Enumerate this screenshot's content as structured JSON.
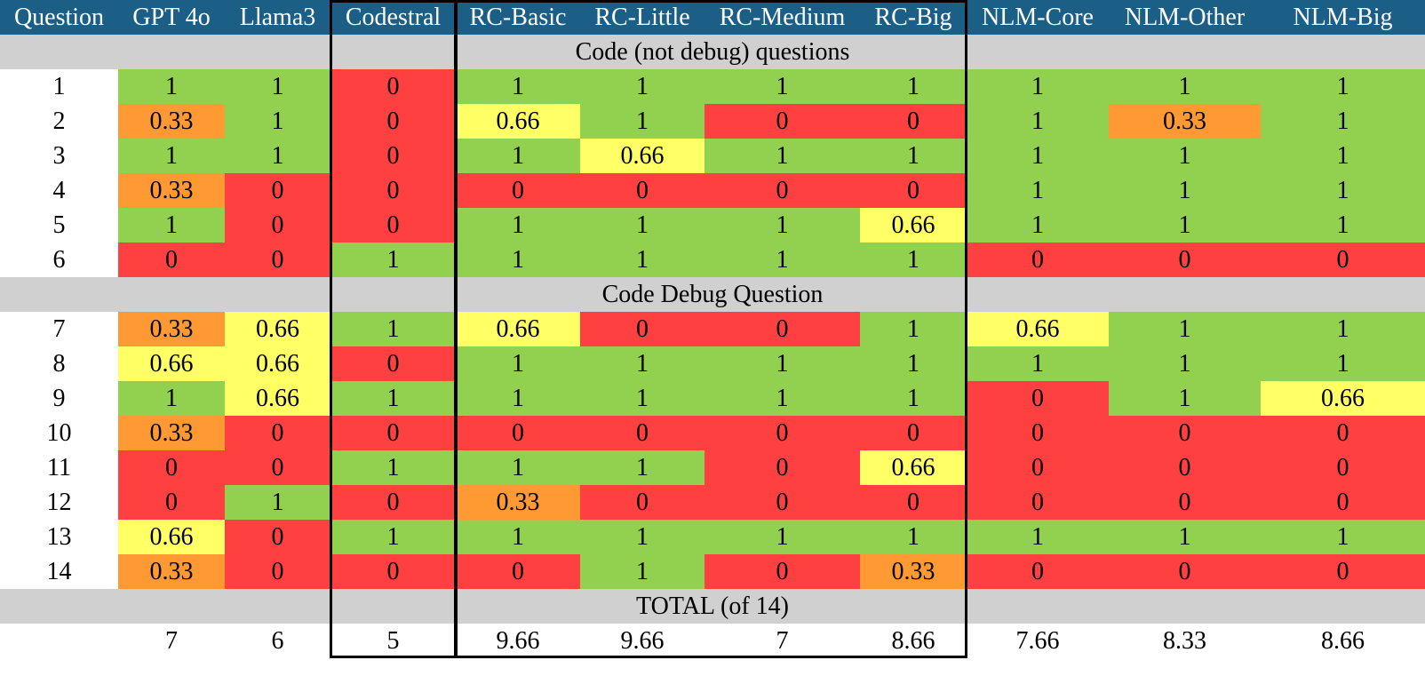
{
  "chart_data": {
    "type": "table",
    "columns": [
      "Question",
      "GPT 4o",
      "Llama3",
      "Codestral",
      "RC-Basic",
      "RC-Little",
      "RC-Medium",
      "RC-Big",
      "NLM-Core",
      "NLM-Other",
      "NLM-Big"
    ],
    "sections": [
      {
        "title": "Code (not debug) questions",
        "rows": [
          {
            "q": "1",
            "v": [
              "1",
              "1",
              "0",
              "1",
              "1",
              "1",
              "1",
              "1",
              "1",
              "1"
            ]
          },
          {
            "q": "2",
            "v": [
              "0.33",
              "1",
              "0",
              "0.66",
              "1",
              "0",
              "0",
              "1",
              "0.33",
              "1"
            ]
          },
          {
            "q": "3",
            "v": [
              "1",
              "1",
              "0",
              "1",
              "0.66",
              "1",
              "1",
              "1",
              "1",
              "1"
            ]
          },
          {
            "q": "4",
            "v": [
              "0.33",
              "0",
              "0",
              "0",
              "0",
              "0",
              "0",
              "1",
              "1",
              "1"
            ]
          },
          {
            "q": "5",
            "v": [
              "1",
              "0",
              "0",
              "1",
              "1",
              "1",
              "0.66",
              "1",
              "1",
              "1"
            ]
          },
          {
            "q": "6",
            "v": [
              "0",
              "0",
              "1",
              "1",
              "1",
              "1",
              "1",
              "0",
              "0",
              "0"
            ]
          }
        ]
      },
      {
        "title": "Code Debug Question",
        "rows": [
          {
            "q": "7",
            "v": [
              "0.33",
              "0.66",
              "1",
              "0.66",
              "0",
              "0",
              "1",
              "0.66",
              "1",
              "1"
            ]
          },
          {
            "q": "8",
            "v": [
              "0.66",
              "0.66",
              "0",
              "1",
              "1",
              "1",
              "1",
              "1",
              "1",
              "1"
            ]
          },
          {
            "q": "9",
            "v": [
              "1",
              "0.66",
              "1",
              "1",
              "1",
              "1",
              "1",
              "0",
              "1",
              "0.66"
            ]
          },
          {
            "q": "10",
            "v": [
              "0.33",
              "0",
              "0",
              "0",
              "0",
              "0",
              "0",
              "0",
              "0",
              "0"
            ]
          },
          {
            "q": "11",
            "v": [
              "0",
              "0",
              "1",
              "1",
              "1",
              "0",
              "0.66",
              "0",
              "0",
              "0"
            ]
          },
          {
            "q": "12",
            "v": [
              "0",
              "1",
              "0",
              "0.33",
              "0",
              "0",
              "0",
              "0",
              "0",
              "0"
            ]
          },
          {
            "q": "13",
            "v": [
              "0.66",
              "0",
              "1",
              "1",
              "1",
              "1",
              "1",
              "1",
              "1",
              "1"
            ]
          },
          {
            "q": "14",
            "v": [
              "0.33",
              "0",
              "0",
              "0",
              "1",
              "0",
              "0.33",
              "0",
              "0",
              "0"
            ]
          }
        ]
      }
    ],
    "total_title": "TOTAL (of 14)",
    "totals": [
      "7",
      "6",
      "5",
      "9.66",
      "9.66",
      "7",
      "8.66",
      "7.66",
      "8.33",
      "8.66"
    ],
    "highlighted_columns": [
      "Codestral",
      "RC-Basic",
      "RC-Little",
      "RC-Medium",
      "RC-Big"
    ],
    "colors": {
      "header_bg": "#1b5e86",
      "header_text": "#ffffff",
      "section_bg": "#d0d0d0",
      "score_1": "#92d050",
      "score_0.66": "#ffff66",
      "score_0.33": "#ff9933",
      "score_0": "#ff4040",
      "total_bg": "#ffffff"
    }
  }
}
